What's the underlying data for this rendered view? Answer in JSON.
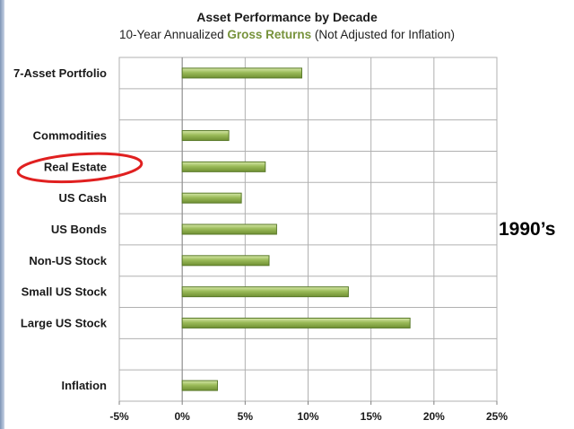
{
  "chart_data": {
    "type": "bar",
    "orientation": "horizontal",
    "title": "Asset Performance by Decade",
    "subtitle_parts": [
      "10-Year Annualized ",
      "Gross Returns",
      " (Not Adjusted for Inflation)"
    ],
    "annotation": "1990’s",
    "categories": [
      "7-Asset Portfolio",
      "",
      "Commodities",
      "Real Estate",
      "US Cash",
      "US Bonds",
      "Non-US Stock",
      "Small US Stock",
      "Large US Stock",
      "",
      "Inflation"
    ],
    "values": [
      9.5,
      null,
      3.7,
      6.6,
      4.7,
      7.5,
      6.9,
      13.2,
      18.1,
      null,
      2.8
    ],
    "highlighted_category": "Real Estate",
    "xlim": [
      -5,
      25
    ],
    "xticks": [
      -5,
      0,
      5,
      10,
      15,
      20,
      25
    ],
    "xtick_labels": [
      "-5%",
      "0%",
      "5%",
      "10%",
      "15%",
      "20%",
      "25%"
    ],
    "grid": true,
    "colors": {
      "bar_fill": "#9bbb59",
      "bar_edge": "#5a7a2a",
      "highlight_ellipse": "#e02020",
      "title_accent": "#77933c",
      "gridline": "#b0b0b0"
    }
  }
}
